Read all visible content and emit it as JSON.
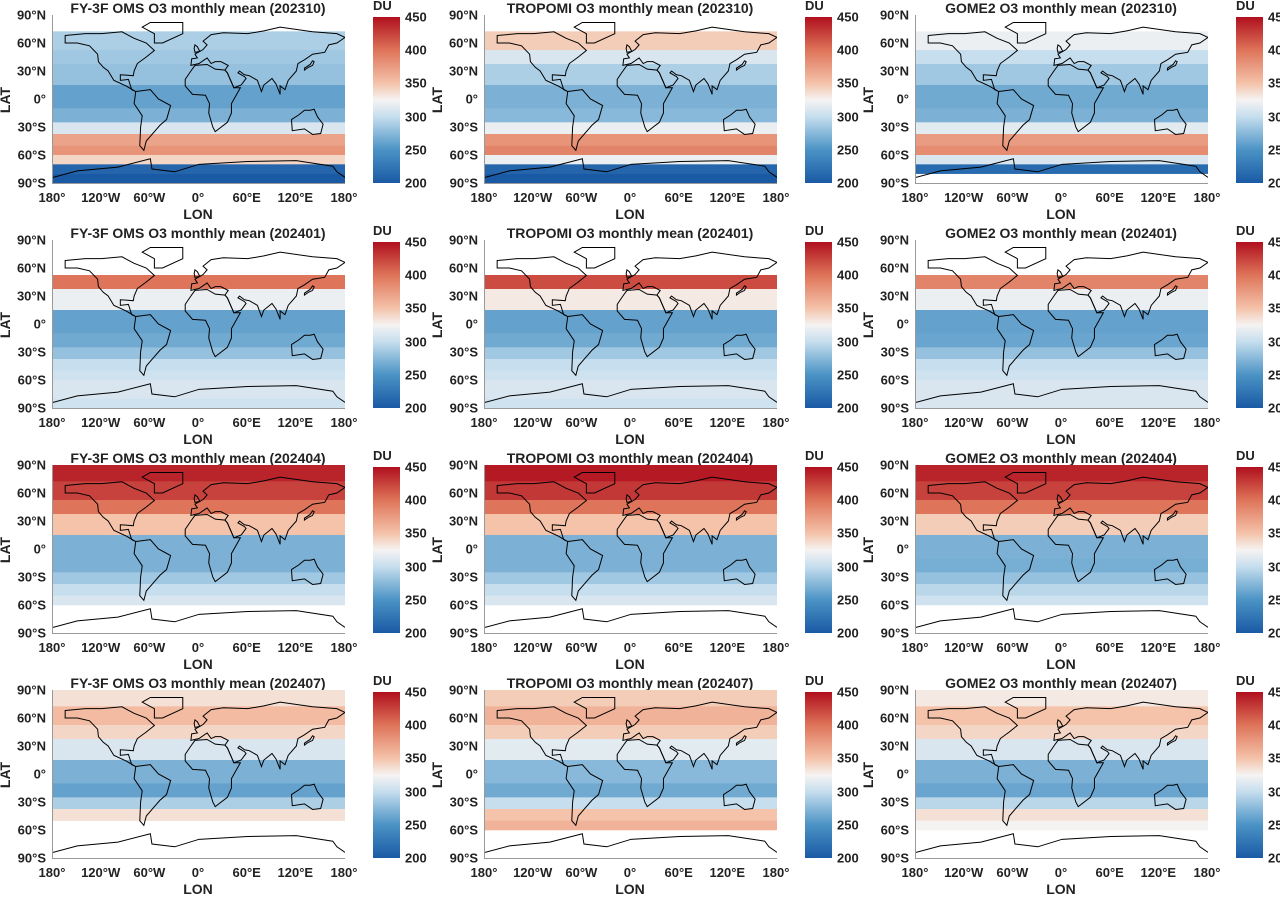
{
  "xlabel": "LON",
  "ylabel": "LAT",
  "colorbar_unit": "DU",
  "lat_ticks": [
    "90°N",
    "60°N",
    "30°N",
    "0°",
    "30°S",
    "60°S",
    "90°S"
  ],
  "lon_ticks": [
    "180°",
    "120°W",
    "60°W",
    "0°",
    "60°E",
    "120°E",
    "180°"
  ],
  "colorbar_ticks": [
    "450",
    "400",
    "350",
    "300",
    "250",
    "200"
  ],
  "colorbar_range": [
    200,
    450
  ],
  "colormap": {
    "200": "#1a5aa5",
    "250": "#4b93c5",
    "300": "#c6deee",
    "325": "#f5f3f2",
    "350": "#f4c3aa",
    "400": "#de7459",
    "450": "#b0101e"
  },
  "chart_data": {
    "type": "heatmap",
    "note_lat_levels": [
      85,
      60,
      45,
      30,
      0,
      -20,
      -30,
      -45,
      -55,
      -65,
      -75,
      -85
    ],
    "panels": [
      {
        "title": "FY-3F OMS O3 monthly mean (202310)",
        "zonal_mean_DU": [
          null,
          290,
          285,
          280,
          260,
          270,
          310,
          370,
          380,
          340,
          210,
          200
        ]
      },
      {
        "title": "TROPOMI O3 monthly mean (202310)",
        "zonal_mean_DU": [
          null,
          345,
          310,
          290,
          270,
          275,
          320,
          380,
          390,
          320,
          210,
          200
        ]
      },
      {
        "title": "GOME2 O3 monthly mean (202310)",
        "zonal_mean_DU": [
          null,
          320,
          300,
          285,
          265,
          270,
          315,
          375,
          385,
          310,
          215,
          null
        ]
      },
      {
        "title": "FY-3F OMS O3 monthly mean (202401)",
        "zonal_mean_DU": [
          null,
          null,
          400,
          320,
          260,
          265,
          280,
          300,
          305,
          310,
          310,
          305
        ]
      },
      {
        "title": "TROPOMI O3 monthly mean (202401)",
        "zonal_mean_DU": [
          null,
          null,
          420,
          330,
          260,
          265,
          285,
          300,
          305,
          310,
          310,
          305
        ]
      },
      {
        "title": "GOME2 O3 monthly mean (202401)",
        "zonal_mean_DU": [
          null,
          null,
          390,
          320,
          260,
          262,
          280,
          300,
          305,
          310,
          310,
          310
        ]
      },
      {
        "title": "FY-3F OMS O3 monthly mean (202404)",
        "zonal_mean_DU": [
          440,
          425,
          400,
          350,
          270,
          270,
          285,
          300,
          310,
          null,
          null,
          null
        ]
      },
      {
        "title": "TROPOMI O3 monthly mean (202404)",
        "zonal_mean_DU": [
          445,
          430,
          400,
          350,
          270,
          270,
          285,
          300,
          310,
          null,
          null,
          null
        ]
      },
      {
        "title": "GOME2 O3 monthly mean (202404)",
        "zonal_mean_DU": [
          440,
          425,
          400,
          345,
          270,
          268,
          280,
          295,
          305,
          null,
          null,
          null
        ]
      },
      {
        "title": "FY-3F OMS O3 monthly mean (202407)",
        "zonal_mean_DU": [
          335,
          355,
          340,
          310,
          270,
          260,
          290,
          335,
          null,
          null,
          null,
          null
        ]
      },
      {
        "title": "TROPOMI O3 monthly mean (202407)",
        "zonal_mean_DU": [
          345,
          360,
          345,
          315,
          275,
          265,
          300,
          350,
          360,
          null,
          null,
          null
        ]
      },
      {
        "title": "GOME2 O3 monthly mean (202407)",
        "zonal_mean_DU": [
          330,
          350,
          340,
          310,
          270,
          262,
          295,
          335,
          325,
          null,
          null,
          null
        ]
      }
    ]
  }
}
